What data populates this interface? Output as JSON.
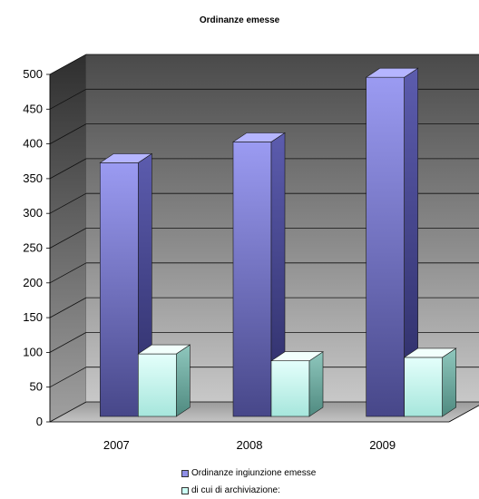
{
  "chart_data": {
    "type": "bar",
    "title": "Ordinanze emesse",
    "xlabel": "",
    "ylabel": "",
    "categories": [
      "2007",
      "2008",
      "2009"
    ],
    "series": [
      {
        "name": "Ordinanze ingiunzione emesse",
        "values": [
          365,
          395,
          488
        ],
        "color": "#8f8fe6"
      },
      {
        "name": "di cui di archiviazione:",
        "values": [
          90,
          80,
          85
        ],
        "color": "#ccfff5"
      }
    ],
    "ylim": [
      0,
      500
    ],
    "yticks": [
      0,
      50,
      100,
      150,
      200,
      250,
      300,
      350,
      400,
      450,
      500
    ],
    "grid": true,
    "legend_position": "bottom",
    "three_d": true
  }
}
